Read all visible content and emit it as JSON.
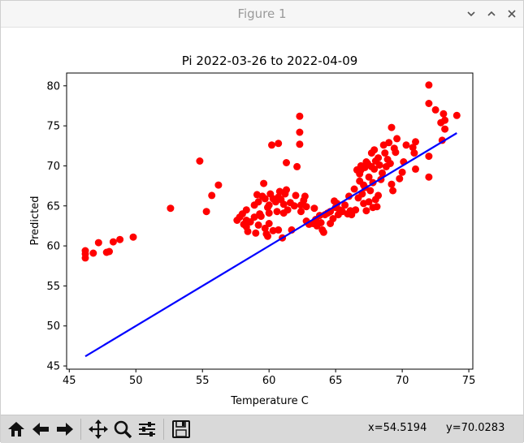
{
  "window": {
    "title": "Figure 1",
    "controls": {
      "minimize": "⌄",
      "maximize": "⌃",
      "close": "✕"
    }
  },
  "toolbar": {
    "buttons": [
      {
        "icon": "home-icon",
        "glyph": "⌂"
      },
      {
        "icon": "back-arrow-icon",
        "glyph": "←"
      },
      {
        "icon": "forward-arrow-icon",
        "glyph": "→"
      },
      {
        "icon": "pan-icon",
        "glyph": "✥"
      },
      {
        "icon": "zoom-icon",
        "glyph": "🔍"
      },
      {
        "icon": "configure-subplots-icon",
        "glyph": "☰"
      },
      {
        "icon": "save-icon",
        "glyph": "💾"
      }
    ],
    "coords": {
      "x": "x=54.5194",
      "y": "y=70.0283"
    }
  },
  "colors": {
    "points": "#ff0000",
    "line": "#0000ff",
    "toolbar": "#d9d9d9"
  },
  "chart_data": {
    "type": "scatter",
    "title": "Pi 2022-03-26 to 2022-04-09",
    "xlabel": "Temperature C",
    "ylabel": "Predicted",
    "xlim": [
      44.8,
      75.3
    ],
    "ylim": [
      44.6,
      81.6
    ],
    "xticks": [
      45,
      50,
      55,
      60,
      65,
      70,
      75
    ],
    "yticks": [
      45,
      50,
      55,
      60,
      65,
      70,
      75,
      80
    ],
    "grid": false,
    "legend": "none",
    "series": [
      {
        "kind": "scatter",
        "points": [
          [
            46.2,
            58.5
          ],
          [
            46.2,
            59.0
          ],
          [
            46.2,
            59.4
          ],
          [
            46.8,
            59.1
          ],
          [
            47.2,
            60.4
          ],
          [
            47.8,
            59.2
          ],
          [
            48.0,
            59.3
          ],
          [
            48.3,
            60.5
          ],
          [
            48.8,
            60.8
          ],
          [
            49.8,
            61.1
          ],
          [
            52.6,
            64.7
          ],
          [
            54.8,
            70.6
          ],
          [
            55.3,
            64.3
          ],
          [
            55.7,
            66.3
          ],
          [
            56.2,
            67.6
          ],
          [
            57.6,
            63.2
          ],
          [
            57.8,
            63.6
          ],
          [
            58.0,
            64.0
          ],
          [
            58.1,
            62.7
          ],
          [
            58.3,
            64.5
          ],
          [
            58.3,
            63.2
          ],
          [
            58.3,
            62.4
          ],
          [
            58.4,
            61.8
          ],
          [
            58.6,
            63.0
          ],
          [
            58.9,
            65.1
          ],
          [
            58.9,
            63.6
          ],
          [
            59.0,
            61.6
          ],
          [
            59.1,
            66.4
          ],
          [
            59.2,
            65.5
          ],
          [
            59.2,
            62.6
          ],
          [
            59.3,
            64.0
          ],
          [
            59.4,
            63.7
          ],
          [
            59.5,
            66.2
          ],
          [
            59.6,
            67.8
          ],
          [
            59.7,
            65.9
          ],
          [
            59.7,
            62.2
          ],
          [
            59.8,
            61.5
          ],
          [
            59.9,
            61.2
          ],
          [
            59.9,
            64.8
          ],
          [
            60.0,
            65.1
          ],
          [
            60.0,
            64.1
          ],
          [
            60.0,
            62.8
          ],
          [
            60.1,
            66.5
          ],
          [
            60.2,
            72.6
          ],
          [
            60.3,
            65.9
          ],
          [
            60.3,
            61.9
          ],
          [
            60.5,
            65.5
          ],
          [
            60.6,
            64.3
          ],
          [
            60.7,
            72.8
          ],
          [
            60.7,
            66.1
          ],
          [
            60.7,
            62.0
          ],
          [
            60.8,
            66.8
          ],
          [
            60.9,
            65.8
          ],
          [
            61.0,
            61.0
          ],
          [
            61.1,
            65.2
          ],
          [
            61.1,
            64.1
          ],
          [
            61.2,
            66.5
          ],
          [
            61.3,
            67.0
          ],
          [
            61.3,
            70.4
          ],
          [
            61.4,
            64.5
          ],
          [
            61.6,
            65.4
          ],
          [
            61.7,
            62.0
          ],
          [
            61.9,
            65.0
          ],
          [
            62.0,
            66.3
          ],
          [
            62.1,
            69.9
          ],
          [
            62.3,
            76.2
          ],
          [
            62.3,
            74.2
          ],
          [
            62.3,
            72.7
          ],
          [
            62.4,
            65.1
          ],
          [
            62.4,
            64.3
          ],
          [
            62.6,
            65.7
          ],
          [
            62.7,
            66.2
          ],
          [
            62.8,
            64.9
          ],
          [
            62.8,
            63.1
          ],
          [
            63.0,
            62.7
          ],
          [
            63.3,
            62.8
          ],
          [
            63.4,
            64.7
          ],
          [
            63.5,
            63.3
          ],
          [
            63.6,
            62.5
          ],
          [
            63.8,
            63.8
          ],
          [
            63.9,
            62.9
          ],
          [
            64.0,
            62.0
          ],
          [
            64.1,
            61.7
          ],
          [
            64.2,
            63.9
          ],
          [
            64.4,
            64.1
          ],
          [
            64.6,
            64.3
          ],
          [
            64.6,
            62.8
          ],
          [
            64.8,
            63.4
          ],
          [
            64.9,
            65.6
          ],
          [
            65.0,
            64.8
          ],
          [
            65.1,
            65.3
          ],
          [
            65.2,
            63.9
          ],
          [
            65.3,
            64.5
          ],
          [
            65.5,
            64.3
          ],
          [
            65.7,
            65.1
          ],
          [
            65.9,
            64.0
          ],
          [
            66.0,
            66.2
          ],
          [
            66.1,
            64.4
          ],
          [
            66.2,
            63.9
          ],
          [
            66.4,
            67.1
          ],
          [
            66.5,
            64.5
          ],
          [
            66.6,
            69.5
          ],
          [
            66.7,
            66.0
          ],
          [
            66.8,
            68.1
          ],
          [
            66.8,
            69.0
          ],
          [
            66.9,
            70.0
          ],
          [
            66.9,
            69.5
          ],
          [
            67.0,
            66.5
          ],
          [
            67.1,
            65.3
          ],
          [
            67.1,
            67.6
          ],
          [
            67.2,
            67.3
          ],
          [
            67.2,
            69.8
          ],
          [
            67.3,
            70.5
          ],
          [
            67.3,
            64.4
          ],
          [
            67.4,
            70.3
          ],
          [
            67.5,
            68.6
          ],
          [
            67.5,
            65.5
          ],
          [
            67.6,
            66.9
          ],
          [
            67.7,
            71.6
          ],
          [
            67.7,
            69.9
          ],
          [
            67.8,
            64.8
          ],
          [
            67.8,
            67.9
          ],
          [
            67.9,
            69.6
          ],
          [
            67.9,
            72.0
          ],
          [
            68.0,
            70.6
          ],
          [
            68.0,
            65.8
          ],
          [
            68.1,
            64.9
          ],
          [
            68.2,
            71.0
          ],
          [
            68.2,
            66.3
          ],
          [
            68.3,
            70.1
          ],
          [
            68.4,
            68.3
          ],
          [
            68.5,
            69.1
          ],
          [
            68.6,
            72.6
          ],
          [
            68.7,
            71.6
          ],
          [
            68.8,
            69.9
          ],
          [
            68.9,
            70.8
          ],
          [
            69.0,
            72.9
          ],
          [
            69.1,
            70.3
          ],
          [
            69.2,
            74.8
          ],
          [
            69.2,
            67.7
          ],
          [
            69.3,
            66.9
          ],
          [
            69.4,
            72.2
          ],
          [
            69.5,
            71.7
          ],
          [
            69.6,
            73.4
          ],
          [
            69.8,
            68.4
          ],
          [
            70.0,
            69.2
          ],
          [
            70.1,
            70.5
          ],
          [
            70.3,
            72.6
          ],
          [
            70.8,
            72.3
          ],
          [
            70.9,
            71.6
          ],
          [
            71.0,
            69.6
          ],
          [
            71.0,
            73.0
          ],
          [
            72.0,
            80.1
          ],
          [
            72.0,
            77.8
          ],
          [
            72.0,
            71.2
          ],
          [
            72.0,
            68.6
          ],
          [
            72.5,
            77.0
          ],
          [
            72.9,
            75.4
          ],
          [
            73.0,
            73.2
          ],
          [
            73.1,
            76.5
          ],
          [
            73.2,
            75.7
          ],
          [
            73.2,
            74.6
          ],
          [
            74.1,
            76.3
          ]
        ]
      },
      {
        "kind": "line",
        "points": [
          [
            46.2,
            46.2
          ],
          [
            74.1,
            74.1
          ]
        ]
      }
    ]
  }
}
